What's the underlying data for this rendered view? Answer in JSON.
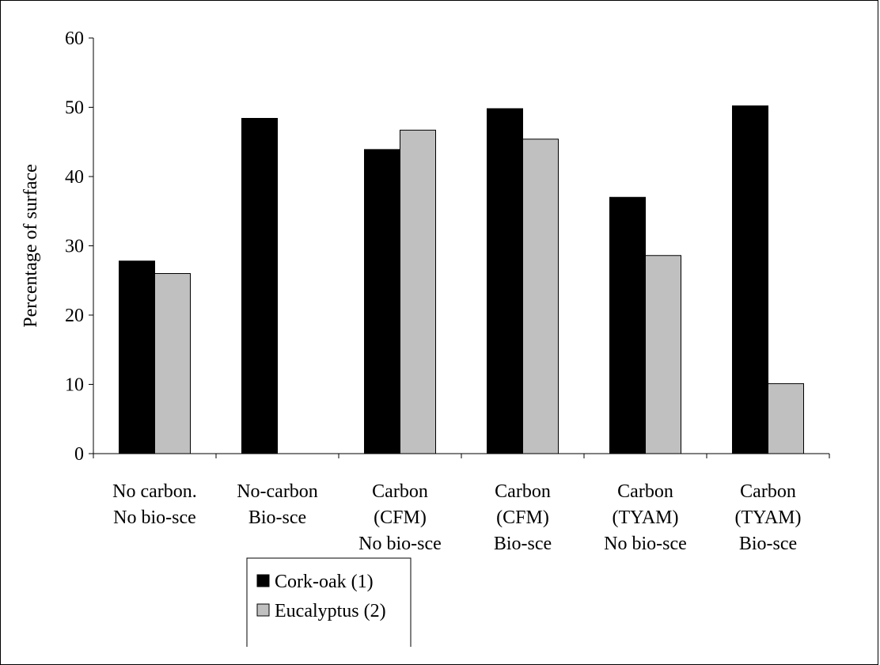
{
  "chart_data": {
    "type": "bar",
    "title": "",
    "xlabel": "",
    "ylabel": "Percentage of surface",
    "ylim": [
      0,
      60
    ],
    "yticks": [
      0,
      10,
      20,
      30,
      40,
      50,
      60
    ],
    "grid": false,
    "legend_position": "bottom",
    "categories": [
      [
        "No carbon.",
        "No bio-sce"
      ],
      [
        "No-carbon",
        "Bio-sce"
      ],
      [
        "Carbon",
        "(CFM)",
        "No bio-sce"
      ],
      [
        "Carbon",
        "(CFM)",
        "Bio-sce"
      ],
      [
        "Carbon",
        "(TYAM)",
        "No bio-sce"
      ],
      [
        "Carbon",
        "(TYAM)",
        "Bio-sce"
      ]
    ],
    "series": [
      {
        "name": "Cork-oak (1)",
        "color": "#000000",
        "values": [
          27.8,
          48.4,
          43.9,
          49.8,
          37.0,
          50.2
        ]
      },
      {
        "name": "Eucalyptus (2)",
        "color": "#c0c0c0",
        "values": [
          26.0,
          0,
          46.7,
          45.4,
          28.6,
          10.1
        ]
      }
    ]
  }
}
